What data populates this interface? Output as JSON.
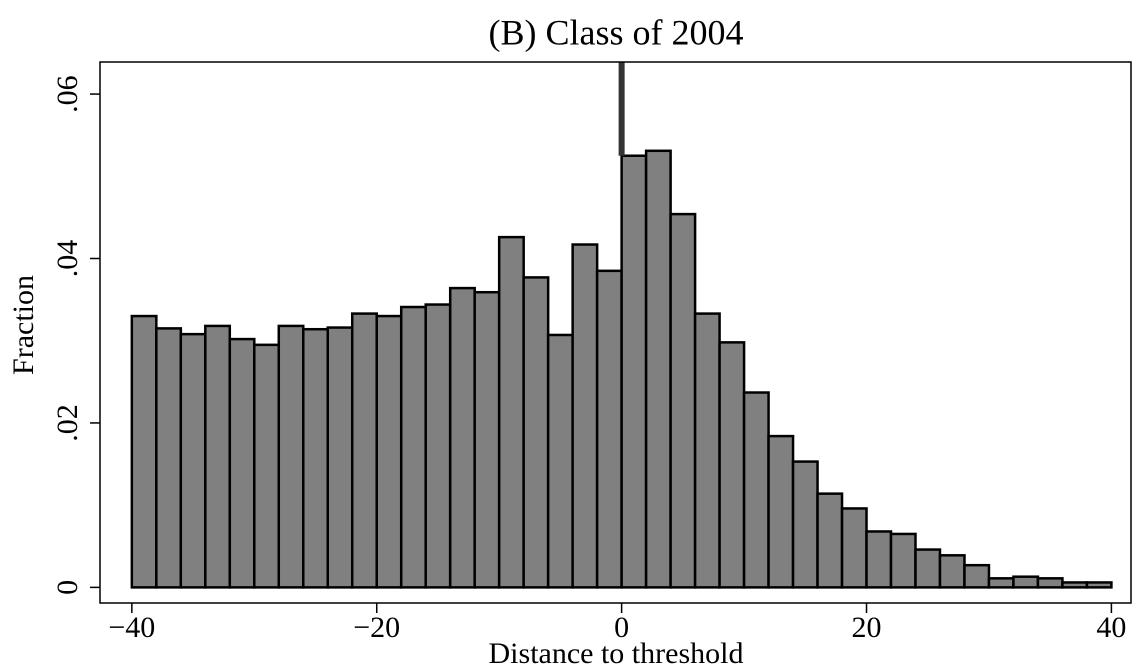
{
  "chart_data": {
    "type": "histogram",
    "title": "(B) Class of 2004",
    "x_label": "Distance to threshold",
    "y_label": "Fraction",
    "bins": [
      -40,
      -38,
      -36,
      -34,
      -32,
      -30,
      -28,
      -26,
      -24,
      -22,
      -20,
      -18,
      -16,
      -14,
      -12,
      -10,
      -8,
      -6,
      -4,
      -2,
      0,
      2,
      4,
      6,
      8,
      10,
      12,
      14,
      16,
      18,
      20,
      22,
      24,
      26,
      28,
      30,
      32,
      34,
      36,
      38,
      40
    ],
    "values": [
      0.033,
      0.0315,
      0.0308,
      0.0318,
      0.0302,
      0.0295,
      0.0318,
      0.0314,
      0.0316,
      0.0333,
      0.033,
      0.0341,
      0.0344,
      0.0364,
      0.0359,
      0.0426,
      0.0377,
      0.0307,
      0.0417,
      0.0385,
      0.0525,
      0.0531,
      0.0454,
      0.0333,
      0.0298,
      0.0237,
      0.0184,
      0.0153,
      0.0114,
      0.0096,
      0.0068,
      0.0065,
      0.0046,
      0.0039,
      0.0027,
      0.0011,
      0.0013,
      0.0011,
      0.0006,
      0.0006
    ],
    "color": "#808080",
    "vline": 0,
    "vline_color": "#333333",
    "xlim": [
      -42.6,
      41.6
    ],
    "ylim": [
      -0.0019,
      0.0639
    ],
    "xticks": [
      {
        "value": -40,
        "label": "−40"
      },
      {
        "value": -20,
        "label": "−20"
      },
      0,
      20,
      40
    ],
    "yticks": [
      0,
      {
        "value": 0.02,
        "label": ".02"
      },
      {
        "value": 0.04,
        "label": ".04"
      },
      {
        "value": 0.06,
        "label": ".06"
      }
    ]
  }
}
